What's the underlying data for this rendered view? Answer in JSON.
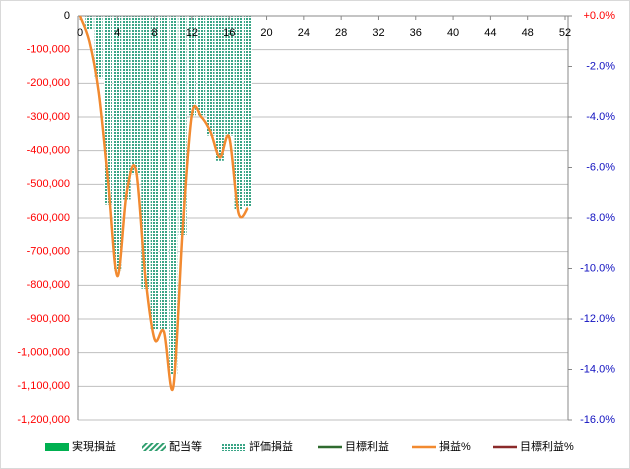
{
  "chart_data": {
    "type": "bar+line",
    "x": [
      0,
      1,
      2,
      3,
      4,
      5,
      6,
      7,
      8,
      9,
      10,
      11,
      12,
      13,
      14,
      15,
      16,
      17,
      18
    ],
    "xlim": [
      0,
      52
    ],
    "xticks": [
      0,
      4,
      8,
      12,
      16,
      20,
      24,
      28,
      32,
      36,
      40,
      44,
      48,
      52
    ],
    "ylim": [
      -1200000,
      0
    ],
    "yticks": [
      {
        "value": 0,
        "label": "0"
      },
      {
        "value": -100000,
        "label": "-100,000"
      },
      {
        "value": -200000,
        "label": "-200,000"
      },
      {
        "value": -300000,
        "label": "-300,000"
      },
      {
        "value": -400000,
        "label": "-400,000"
      },
      {
        "value": -500000,
        "label": "-500,000"
      },
      {
        "value": -600000,
        "label": "-600,000"
      },
      {
        "value": -700000,
        "label": "-700,000"
      },
      {
        "value": -800000,
        "label": "-800,000"
      },
      {
        "value": -900000,
        "label": "-900,000"
      },
      {
        "value": -1000000,
        "label": "-1,000,000"
      },
      {
        "value": -1100000,
        "label": "-1,100,000"
      },
      {
        "value": -1200000,
        "label": "-1,200,000"
      }
    ],
    "y2lim": [
      -16,
      0
    ],
    "y2ticks": [
      {
        "value": 0,
        "label": "+0.0%"
      },
      {
        "value": -2,
        "label": "-2.0%"
      },
      {
        "value": -4,
        "label": "-4.0%"
      },
      {
        "value": -6,
        "label": "-6.0%"
      },
      {
        "value": -8,
        "label": "-8.0%"
      },
      {
        "value": -10,
        "label": "-10.0%"
      },
      {
        "value": -12,
        "label": "-12.0%"
      },
      {
        "value": -14,
        "label": "-14.0%"
      },
      {
        "value": -16,
        "label": "-16.0%"
      }
    ],
    "grid": true,
    "legend": "bottom",
    "series": [
      {
        "name": "実現損益",
        "kind": "bar",
        "pattern": "solid",
        "color": "#00b050",
        "values": [
          null,
          null,
          null,
          null,
          null,
          null,
          null,
          null,
          null,
          null,
          null,
          null,
          null,
          null,
          null,
          null,
          null,
          null,
          null
        ]
      },
      {
        "name": "配当等",
        "kind": "bar",
        "pattern": "diagonal",
        "color": "#2e9e6e",
        "values": [
          null,
          null,
          null,
          null,
          null,
          null,
          null,
          null,
          null,
          null,
          null,
          null,
          null,
          null,
          null,
          null,
          null,
          null,
          null
        ]
      },
      {
        "name": "評価損益",
        "kind": "bar",
        "pattern": "dots",
        "color": "#3aa586",
        "values": [
          0,
          -40000,
          -185000,
          -560000,
          -755000,
          -545000,
          -470000,
          -810000,
          -930000,
          -930000,
          -1065000,
          -650000,
          -295000,
          -295000,
          -355000,
          -430000,
          -355000,
          -575000,
          -565000
        ]
      },
      {
        "name": "目標利益",
        "kind": "line",
        "color": "#2f6b2f",
        "values": [
          null,
          null,
          null,
          null,
          null,
          null,
          null,
          null,
          null,
          null,
          null,
          null,
          null,
          null,
          null,
          null,
          null,
          null,
          null
        ]
      },
      {
        "name": "損益%",
        "kind": "line",
        "axis": "y2",
        "color": "#f28a30",
        "values": [
          0,
          -1.0,
          -3.0,
          -6.5,
          -10.3,
          -7.0,
          -6.1,
          -10.3,
          -12.8,
          -12.5,
          -14.7,
          -8.5,
          -3.9,
          -4.0,
          -4.6,
          -5.6,
          -4.8,
          -7.8,
          -7.6
        ]
      },
      {
        "name": "目標利益%",
        "kind": "line",
        "axis": "y2",
        "color": "#8b2a2a",
        "values": [
          null,
          null,
          null,
          null,
          null,
          null,
          null,
          null,
          null,
          null,
          null,
          null,
          null,
          null,
          null,
          null,
          null,
          null,
          null
        ]
      }
    ]
  }
}
